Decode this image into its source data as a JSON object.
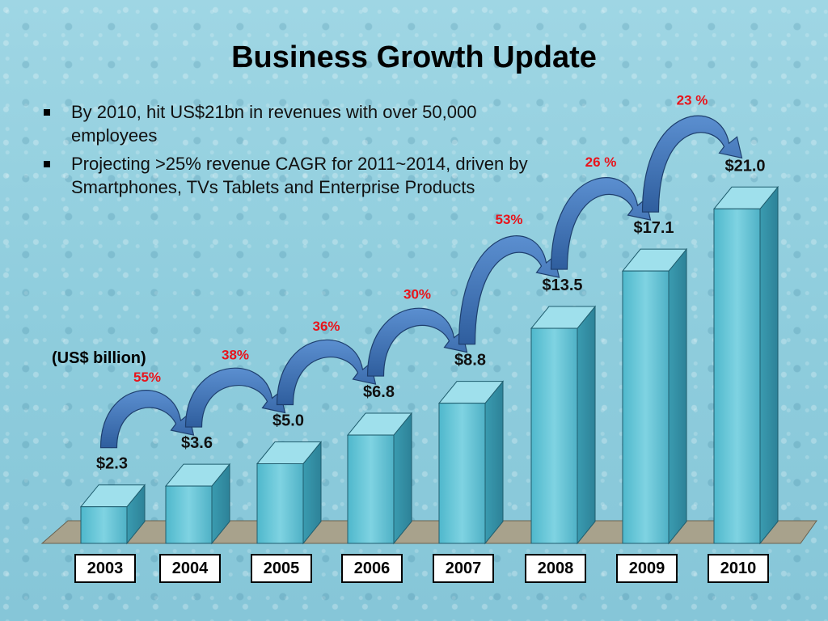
{
  "title": "Business Growth Update",
  "bullets": [
    "By 2010, hit US$21bn in revenues with over 50,000 employees",
    "Projecting >25% revenue CAGR for 2011~2014, driven by Smartphones, TVs Tablets and Enterprise Products"
  ],
  "unit_label": "(US$ billion)",
  "chart_data": {
    "type": "bar",
    "categories": [
      "2003",
      "2004",
      "2005",
      "2006",
      "2007",
      "2008",
      "2009",
      "2010"
    ],
    "values": [
      2.3,
      3.6,
      5.0,
      6.8,
      8.8,
      13.5,
      17.1,
      21.0
    ],
    "value_labels": [
      "$2.3",
      "$3.6",
      "$5.0",
      "$6.8",
      "$8.8",
      "$13.5",
      "$17.1",
      "$21.0"
    ],
    "growth_labels": [
      "55%",
      "38%",
      "36%",
      "30%",
      "53%",
      "26  %",
      "23  %"
    ],
    "title": "",
    "xlabel": "",
    "ylabel": "(US$ billion)"
  },
  "colors": {
    "growth_text": "#e8141b",
    "arrow": "#3e6fb0",
    "bar_front": "#5fc4d6"
  }
}
